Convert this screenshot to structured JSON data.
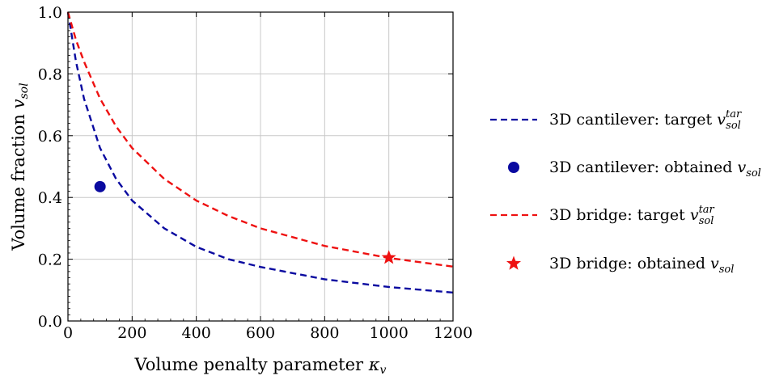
{
  "chart_data": {
    "type": "line",
    "xlabel": "Volume penalty parameter κ_v",
    "ylabel": "Volume fraction v_sol",
    "xlim": [
      0,
      1200
    ],
    "ylim": [
      0,
      1.0
    ],
    "x_ticks": [
      "0",
      "200",
      "400",
      "600",
      "800",
      "1000",
      "1200"
    ],
    "y_ticks": [
      "0.0",
      "0.2",
      "0.4",
      "0.6",
      "0.8",
      "1.0"
    ],
    "grid": true,
    "legend_position": "right",
    "series": [
      {
        "name": "3D cantilever: target v_sol^tar",
        "kind": "dashed-line",
        "color": "#0a0aa0",
        "x": [
          0,
          25,
          50,
          100,
          150,
          200,
          300,
          400,
          500,
          600,
          800,
          1000,
          1200
        ],
        "y": [
          1.0,
          0.84,
          0.72,
          0.56,
          0.46,
          0.39,
          0.3,
          0.24,
          0.2,
          0.175,
          0.135,
          0.11,
          0.092
        ]
      },
      {
        "name": "3D cantilever: obtained v_sol",
        "kind": "marker-circle",
        "color": "#0a0aa0",
        "x": [
          100
        ],
        "y": [
          0.435
        ]
      },
      {
        "name": "3D bridge: target v_sol^tar",
        "kind": "dashed-line",
        "color": "#ee1111",
        "x": [
          0,
          25,
          50,
          100,
          150,
          200,
          300,
          400,
          500,
          600,
          800,
          1000,
          1200
        ],
        "y": [
          1.0,
          0.91,
          0.84,
          0.72,
          0.63,
          0.56,
          0.46,
          0.39,
          0.34,
          0.3,
          0.243,
          0.204,
          0.176
        ]
      },
      {
        "name": "3D bridge: obtained v_sol",
        "kind": "marker-star",
        "color": "#ee1111",
        "x": [
          1000
        ],
        "y": [
          0.205
        ]
      }
    ]
  }
}
